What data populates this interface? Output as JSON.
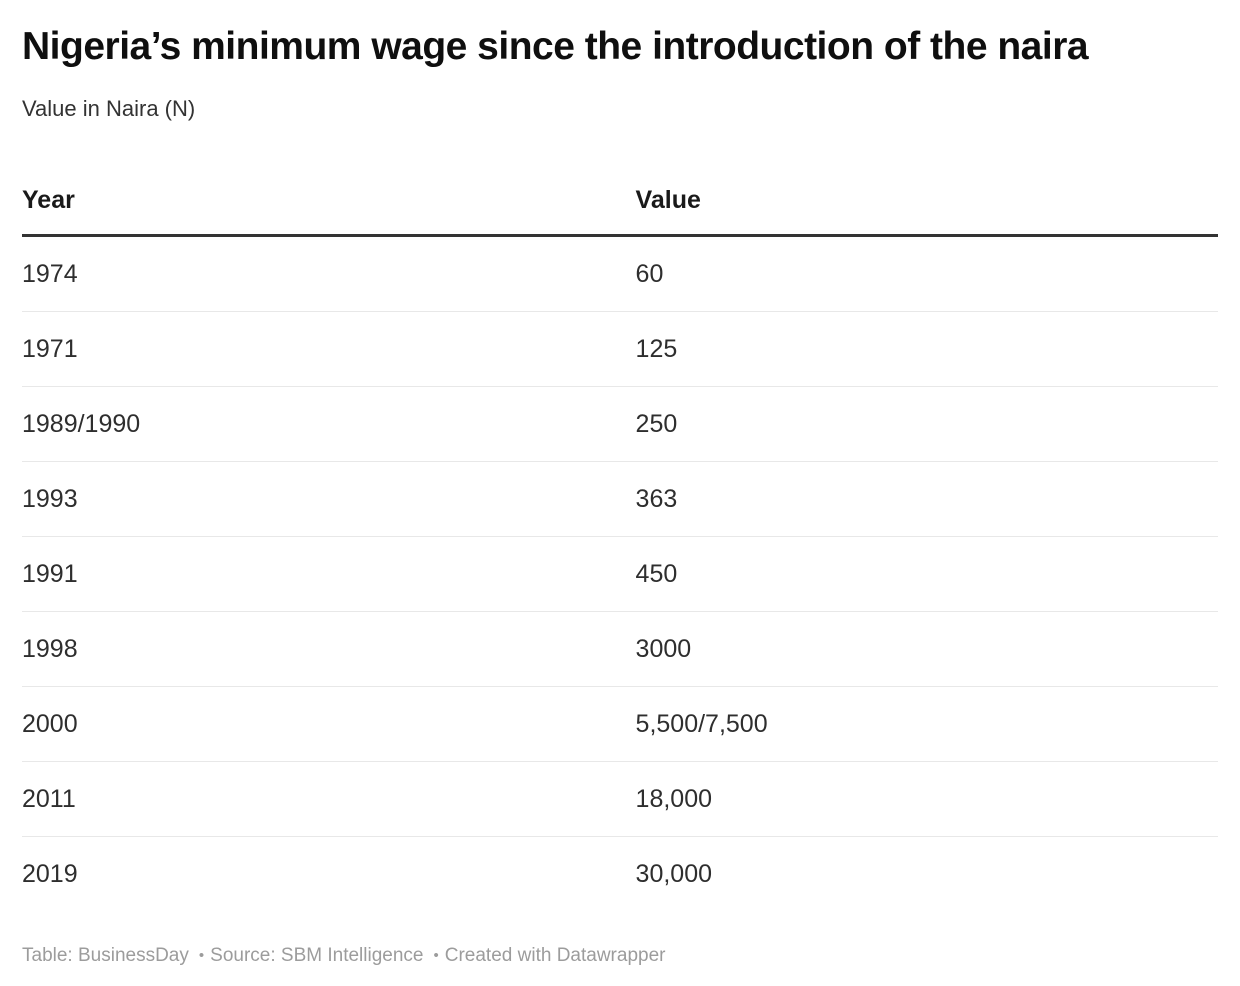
{
  "chart_data": {
    "type": "table",
    "title": "Nigeria’s minimum wage since the introduction of the naira",
    "subtitle": "Value in Naira (N)",
    "columns": [
      "Year",
      "Value"
    ],
    "rows": [
      [
        "1974",
        "60"
      ],
      [
        "1971",
        "125"
      ],
      [
        "1989/1990",
        "250"
      ],
      [
        "1993",
        "363"
      ],
      [
        "1991",
        "450"
      ],
      [
        "1998",
        "3000"
      ],
      [
        "2000",
        "5,500/7,500"
      ],
      [
        "2011",
        "18,000"
      ],
      [
        "2019",
        "30,000"
      ]
    ],
    "legend_position": "none",
    "grid": "horizontal-row-separators"
  },
  "footer": {
    "table_credit": "Table: BusinessDay",
    "separator": "•",
    "source_credit": "Source: SBM Intelligence",
    "created_credit": "Created with Datawrapper"
  },
  "colors": {
    "title_text": "#0f0f0f",
    "body_text": "#333333",
    "cell_text": "#2e2e2e",
    "header_border": "#333333",
    "row_border": "#e8e8e8",
    "footer_text": "#9c9c9c",
    "background": "#ffffff"
  }
}
